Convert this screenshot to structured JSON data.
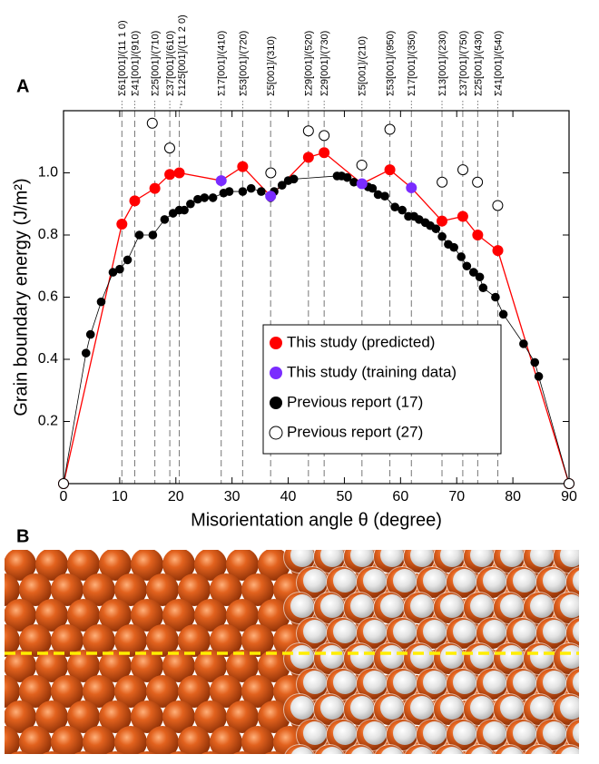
{
  "panels": {
    "a": "A",
    "b": "B"
  },
  "chart_data": {
    "type": "scatter",
    "x_label": "Misorientation angle θ (degree)",
    "y_label": "Grain boundary energy (J/m²)",
    "xlim": [
      0,
      90
    ],
    "ylim": [
      0,
      1.2
    ],
    "xticks": [
      0,
      10,
      20,
      30,
      40,
      50,
      60,
      70,
      80,
      90
    ],
    "yticks": [
      0.2,
      0.4,
      0.6,
      0.8,
      {
        "value": 1,
        "label": "1.0"
      }
    ],
    "legend": "lower right",
    "annotations": [
      {
        "x": 10.39,
        "label": "Σ61[001]/(11 1 0)"
      },
      {
        "x": 12.68,
        "label": "Σ41[001]/(910)"
      },
      {
        "x": 16.26,
        "label": "Σ25[001]/(710)"
      },
      {
        "x": 18.92,
        "label": "Σ37[001]/(610)"
      },
      {
        "x": 20.61,
        "label": "Σ125[001]/(11 2 0)"
      },
      {
        "x": 28.07,
        "label": "Σ17[001]/(410)"
      },
      {
        "x": 31.89,
        "label": "Σ53[001]/(720)"
      },
      {
        "x": 36.87,
        "label": "Σ5[001]/(310)"
      },
      {
        "x": 43.6,
        "label": "Σ29[001]/(520)"
      },
      {
        "x": 46.4,
        "label": "Σ29[001]/(730)"
      },
      {
        "x": 53.13,
        "label": "Σ5[001]/(210)"
      },
      {
        "x": 58.1,
        "label": "Σ53[001]/(950)"
      },
      {
        "x": 61.93,
        "label": "Σ17[001]/(350)"
      },
      {
        "x": 67.38,
        "label": "Σ13[001]/(230)"
      },
      {
        "x": 71.08,
        "label": "Σ37[001]/(750)"
      },
      {
        "x": 73.74,
        "label": "Σ25[001]/(430)"
      },
      {
        "x": 77.32,
        "label": "Σ41[001]/(540)"
      }
    ],
    "series": [
      {
        "name": "This study (predicted)",
        "color": "#ff0000",
        "marker": "filled",
        "connect": true,
        "x": [
          0,
          10.39,
          12.68,
          16.26,
          18.92,
          20.61,
          31.89,
          43.6,
          46.4,
          58.1,
          67.38,
          71.08,
          73.74,
          77.32,
          90
        ],
        "values": [
          0,
          0.835,
          0.91,
          0.95,
          0.995,
          1.0,
          1.02,
          1.05,
          1.065,
          1.01,
          0.845,
          0.86,
          0.8,
          0.75,
          0
        ]
      },
      {
        "name": "This study (training data)",
        "color": "#7a2cff",
        "marker": "filled",
        "connect": true,
        "x": [
          28.07,
          36.87,
          53.13,
          61.93
        ],
        "values": [
          0.975,
          0.925,
          0.965,
          0.952
        ]
      },
      {
        "name": "Previous report (17)",
        "color": "#000000",
        "marker": "filled",
        "connect": false,
        "x": [
          0,
          4.0,
          4.8,
          6.7,
          8.8,
          10.0,
          11.4,
          13.5,
          15.9,
          18.0,
          19.5,
          20.6,
          21.5,
          22.6,
          23.9,
          25.1,
          26.6,
          28.5,
          29.5,
          31.9,
          33.4,
          35.2,
          36.87,
          37.5,
          38.9,
          40.0,
          41.0,
          48.7,
          49.5,
          50.5,
          51.7,
          53.0,
          54.2,
          55.0,
          56.0,
          57.2,
          59.0,
          60.3,
          61.4,
          62.4,
          63.3,
          64.4,
          65.3,
          66.3,
          67.4,
          68.5,
          69.5,
          70.8,
          71.8,
          73.0,
          74.1,
          74.7,
          76.9,
          78.3,
          81.9,
          83.9,
          84.6,
          90
        ],
        "values": [
          0,
          0.42,
          0.48,
          0.585,
          0.68,
          0.69,
          0.72,
          0.8,
          0.8,
          0.85,
          0.87,
          0.88,
          0.88,
          0.9,
          0.915,
          0.92,
          0.92,
          0.935,
          0.94,
          0.94,
          0.95,
          0.94,
          0.92,
          0.94,
          0.96,
          0.975,
          0.98,
          0.99,
          0.99,
          0.985,
          0.97,
          0.965,
          0.955,
          0.95,
          0.93,
          0.925,
          0.89,
          0.88,
          0.86,
          0.86,
          0.85,
          0.84,
          0.83,
          0.82,
          0.795,
          0.77,
          0.76,
          0.73,
          0.7,
          0.68,
          0.665,
          0.63,
          0.6,
          0.545,
          0.45,
          0.39,
          0.345,
          0
        ]
      },
      {
        "name": "Previous report (27)",
        "color": "#000000",
        "marker": "open",
        "connect": false,
        "x": [
          0,
          15.8,
          18.9,
          36.9,
          43.6,
          46.4,
          53.1,
          58.1,
          67.4,
          71.1,
          73.7,
          77.3,
          90
        ],
        "values": [
          0,
          1.16,
          1.08,
          1.0,
          1.135,
          1.12,
          1.025,
          1.14,
          0.97,
          1.01,
          0.97,
          0.895,
          0
        ]
      }
    ]
  }
}
